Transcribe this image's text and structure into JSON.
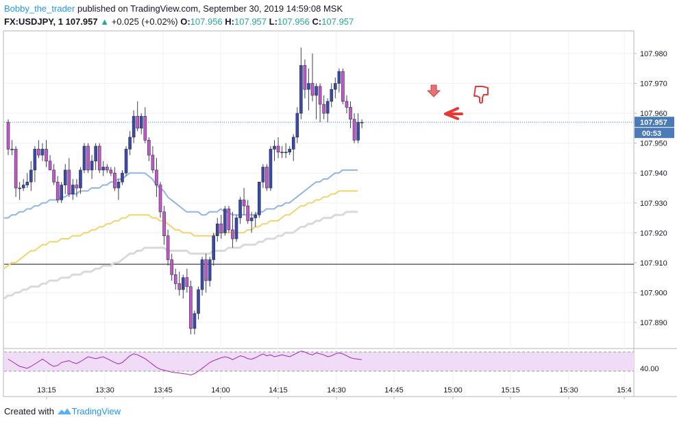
{
  "header": {
    "author": "Bobby_the_trader",
    "published_text": "published on TradingView.com, September 30, 2019 14:59:08 MSK",
    "symbol": "FX:USDJPY, 1",
    "last_price": "107.957",
    "change_arrow": "▲",
    "change": "+0.025 (+0.02%)",
    "o_label": "O:",
    "o_value": "107.956",
    "h_label": "H:",
    "h_value": "107.957",
    "l_label": "L:",
    "l_value": "107.956",
    "c_label": "C:",
    "c_value": "107.957"
  },
  "price_axis": {
    "ticks": [
      "107.980",
      "107.970",
      "107.960",
      "107.950",
      "107.940",
      "107.930",
      "107.920",
      "107.910",
      "107.900",
      "107.890"
    ],
    "current_price_tag": "107.957",
    "countdown_tag": "00:53",
    "rsi_tick": "40.00"
  },
  "time_axis": {
    "ticks": [
      "13:15",
      "13:30",
      "13:45",
      "14:00",
      "14:15",
      "14:30",
      "14:45",
      "15:00",
      "15:15",
      "15:30",
      "15:4"
    ]
  },
  "footer": {
    "created_with": "Created with",
    "brand": "TradingView"
  },
  "colors": {
    "bull_candle": "#3b4aa8",
    "bear_candle": "#c558c9",
    "ma_fast": "#8fb4e8",
    "ma_mid": "#f2d36b",
    "ma_slow": "#d9d9d9",
    "rsi_line": "#9c27b0",
    "rsi_band": "#f0dcf7",
    "annotation_red": "#e53935"
  },
  "icons": [
    "tradingview-logo-icon",
    "thumbs-down-icon",
    "arrow-left-icon",
    "arrow-down-icon"
  ],
  "chart_data": {
    "type": "candlestick",
    "symbol": "FX:USDJPY",
    "interval": "1",
    "y_range": [
      107.884,
      107.99
    ],
    "horizontal_line": 107.9095,
    "current_price": 107.957,
    "x_ticks": [
      "13:15",
      "13:30",
      "13:45",
      "14:00",
      "14:15",
      "14:30",
      "14:45",
      "15:00",
      "15:15",
      "15:30",
      "15:4"
    ],
    "candles": [
      [
        107.957,
        107.958,
        107.946,
        107.948
      ],
      [
        107.948,
        107.951,
        107.946,
        107.948
      ],
      [
        107.948,
        107.949,
        107.932,
        107.935
      ],
      [
        107.935,
        107.937,
        107.931,
        107.935
      ],
      [
        107.935,
        107.938,
        107.934,
        107.936
      ],
      [
        107.936,
        107.94,
        107.935,
        107.937
      ],
      [
        107.937,
        107.944,
        107.934,
        107.941
      ],
      [
        107.941,
        107.949,
        107.937,
        107.948
      ],
      [
        107.948,
        107.951,
        107.945,
        107.946
      ],
      [
        107.946,
        107.95,
        107.944,
        107.948
      ],
      [
        107.948,
        107.951,
        107.942,
        107.944
      ],
      [
        107.944,
        107.946,
        107.941,
        107.941
      ],
      [
        107.941,
        107.943,
        107.936,
        107.937
      ],
      [
        107.937,
        107.939,
        107.93,
        107.931
      ],
      [
        107.931,
        107.937,
        107.93,
        107.936
      ],
      [
        107.936,
        107.943,
        107.933,
        107.941
      ],
      [
        107.941,
        107.945,
        107.932,
        107.933
      ],
      [
        107.933,
        107.938,
        107.931,
        107.936
      ],
      [
        107.936,
        107.938,
        107.932,
        107.935
      ],
      [
        107.935,
        107.942,
        107.933,
        107.941
      ],
      [
        107.941,
        107.95,
        107.94,
        107.949
      ],
      [
        107.949,
        107.95,
        107.94,
        107.941
      ],
      [
        107.941,
        107.946,
        107.938,
        107.944
      ],
      [
        107.944,
        107.95,
        107.941,
        107.949
      ],
      [
        107.949,
        107.95,
        107.94,
        107.941
      ],
      [
        107.941,
        107.944,
        107.939,
        107.942
      ],
      [
        107.942,
        107.943,
        107.94,
        107.941
      ],
      [
        107.941,
        107.942,
        107.939,
        107.94
      ],
      [
        107.94,
        107.942,
        107.934,
        107.935
      ],
      [
        107.935,
        107.938,
        107.931,
        107.937
      ],
      [
        107.937,
        107.941,
        107.936,
        107.94
      ],
      [
        107.94,
        107.949,
        107.939,
        107.948
      ],
      [
        107.948,
        107.954,
        107.946,
        107.952
      ],
      [
        107.952,
        107.961,
        107.95,
        107.959
      ],
      [
        107.959,
        107.964,
        107.954,
        107.955
      ],
      [
        107.955,
        107.96,
        107.953,
        107.959
      ],
      [
        107.959,
        107.962,
        107.95,
        107.951
      ],
      [
        107.951,
        107.952,
        107.944,
        107.946
      ],
      [
        107.946,
        107.949,
        107.94,
        107.941
      ],
      [
        107.941,
        107.945,
        107.932,
        107.936
      ],
      [
        107.936,
        107.937,
        107.925,
        107.927
      ],
      [
        107.927,
        107.929,
        107.916,
        107.919
      ],
      [
        107.919,
        107.921,
        107.909,
        107.911
      ],
      [
        107.911,
        107.913,
        107.904,
        107.906
      ],
      [
        107.906,
        107.908,
        107.901,
        107.903
      ],
      [
        107.903,
        107.907,
        107.899,
        107.901
      ],
      [
        107.901,
        107.906,
        107.898,
        107.905
      ],
      [
        107.905,
        107.908,
        107.9,
        107.902
      ],
      [
        107.902,
        107.904,
        107.886,
        107.888
      ],
      [
        107.888,
        107.894,
        107.886,
        107.893
      ],
      [
        107.893,
        107.902,
        107.891,
        107.901
      ],
      [
        107.901,
        107.912,
        107.899,
        107.911
      ],
      [
        107.911,
        107.913,
        107.9,
        107.904
      ],
      [
        107.904,
        107.912,
        107.902,
        107.911
      ],
      [
        107.911,
        107.92,
        107.909,
        107.919
      ],
      [
        107.919,
        107.925,
        107.917,
        107.923
      ],
      [
        107.923,
        107.926,
        107.918,
        107.92
      ],
      [
        107.92,
        107.929,
        107.919,
        107.928
      ],
      [
        107.928,
        107.929,
        107.92,
        107.921
      ],
      [
        107.921,
        107.927,
        107.915,
        107.918
      ],
      [
        107.918,
        107.926,
        107.917,
        107.925
      ],
      [
        107.925,
        107.932,
        107.923,
        107.931
      ],
      [
        107.931,
        107.935,
        107.926,
        107.929
      ],
      [
        107.929,
        107.931,
        107.923,
        107.924
      ],
      [
        107.924,
        107.927,
        107.92,
        107.925
      ],
      [
        107.925,
        107.927,
        107.922,
        107.926
      ],
      [
        107.926,
        107.937,
        107.925,
        107.937
      ],
      [
        107.937,
        107.943,
        107.935,
        107.942
      ],
      [
        107.942,
        107.943,
        107.934,
        107.935
      ],
      [
        107.935,
        107.949,
        107.934,
        107.948
      ],
      [
        107.948,
        107.951,
        107.944,
        107.949
      ],
      [
        107.949,
        107.952,
        107.945,
        107.947
      ],
      [
        107.947,
        107.949,
        107.945,
        107.947
      ],
      [
        107.947,
        107.95,
        107.945,
        107.947
      ],
      [
        107.947,
        107.949,
        107.946,
        107.948
      ],
      [
        107.948,
        107.953,
        107.944,
        107.952
      ],
      [
        107.952,
        107.962,
        107.95,
        107.96
      ],
      [
        107.96,
        107.982,
        107.958,
        107.976
      ],
      [
        107.976,
        107.978,
        107.965,
        107.968
      ],
      [
        107.968,
        107.975,
        107.961,
        107.97
      ],
      [
        107.97,
        107.98,
        107.964,
        107.966
      ],
      [
        107.966,
        107.97,
        107.958,
        107.969
      ],
      [
        107.969,
        107.97,
        107.957,
        107.963
      ],
      [
        107.963,
        107.966,
        107.958,
        107.96
      ],
      [
        107.96,
        107.965,
        107.957,
        107.964
      ],
      [
        107.964,
        107.97,
        107.962,
        107.968
      ],
      [
        107.968,
        107.972,
        107.965,
        107.97
      ],
      [
        107.97,
        107.975,
        107.967,
        107.974
      ],
      [
        107.974,
        107.975,
        107.963,
        107.964
      ],
      [
        107.964,
        107.966,
        107.96,
        107.962
      ],
      [
        107.962,
        107.964,
        107.955,
        107.958
      ],
      [
        107.958,
        107.96,
        107.95,
        107.951
      ],
      [
        107.951,
        107.96,
        107.95,
        107.957
      ],
      [
        107.957,
        107.958,
        107.955,
        107.957
      ]
    ],
    "ma_fast": [
      107.925,
      107.925,
      107.926,
      107.926,
      107.927,
      107.927,
      107.928,
      107.928,
      107.929,
      107.929,
      107.93,
      107.93,
      107.931,
      107.931,
      107.931,
      107.932,
      107.932,
      107.933,
      107.933,
      107.933,
      107.934,
      107.934,
      107.934,
      107.935,
      107.935,
      107.935,
      107.936,
      107.936,
      107.937,
      107.937,
      107.938,
      107.938,
      107.939,
      107.94,
      107.94,
      107.94,
      107.94,
      107.94,
      107.939,
      107.938,
      107.936,
      107.935,
      107.934,
      107.932,
      107.931,
      107.93,
      107.929,
      107.928,
      107.927,
      107.927,
      107.927,
      107.927,
      107.926,
      107.926,
      107.927,
      107.927,
      107.927,
      107.928,
      107.927,
      107.927,
      107.926,
      107.926,
      107.926,
      107.926,
      107.926,
      107.926,
      107.926,
      107.927,
      107.927,
      107.928,
      107.928,
      107.928,
      107.929,
      107.929,
      107.93,
      107.93,
      107.931,
      107.932,
      107.933,
      107.934,
      107.935,
      107.936,
      107.937,
      107.937,
      107.938,
      107.938,
      107.939,
      107.94,
      107.94,
      107.941,
      107.941,
      107.941,
      107.941,
      107.941
    ],
    "ma_mid": [
      107.908,
      107.909,
      107.91,
      107.91,
      107.911,
      107.912,
      107.913,
      107.914,
      107.914,
      107.915,
      107.916,
      107.916,
      107.917,
      107.917,
      107.917,
      107.918,
      107.918,
      107.918,
      107.919,
      107.919,
      107.919,
      107.92,
      107.92,
      107.921,
      107.921,
      107.922,
      107.922,
      107.923,
      107.923,
      107.924,
      107.924,
      107.925,
      107.925,
      107.926,
      107.926,
      107.926,
      107.926,
      107.926,
      107.926,
      107.925,
      107.925,
      107.924,
      107.924,
      107.923,
      107.922,
      107.921,
      107.921,
      107.92,
      107.92,
      107.92,
      107.919,
      107.919,
      107.919,
      107.919,
      107.919,
      107.919,
      107.92,
      107.92,
      107.92,
      107.92,
      107.92,
      107.92,
      107.92,
      107.92,
      107.921,
      107.921,
      107.922,
      107.922,
      107.923,
      107.923,
      107.924,
      107.924,
      107.924,
      107.925,
      107.926,
      107.926,
      107.927,
      107.928,
      107.929,
      107.929,
      107.93,
      107.93,
      107.931,
      107.931,
      107.932,
      107.932,
      107.933,
      107.933,
      107.934,
      107.934,
      107.934,
      107.934,
      107.934,
      107.934
    ],
    "ma_slow": [
      107.898,
      107.899,
      107.899,
      107.9,
      107.9,
      107.901,
      107.901,
      107.902,
      107.902,
      107.902,
      107.903,
      107.903,
      107.904,
      107.904,
      107.904,
      107.905,
      107.905,
      107.905,
      107.906,
      107.906,
      107.906,
      107.907,
      107.907,
      107.907,
      107.908,
      107.908,
      107.909,
      107.909,
      107.909,
      107.91,
      107.91,
      107.911,
      107.912,
      107.913,
      107.913,
      107.914,
      107.914,
      107.915,
      107.915,
      107.915,
      107.915,
      107.915,
      107.915,
      107.914,
      107.914,
      107.914,
      107.914,
      107.914,
      107.914,
      107.913,
      107.913,
      107.913,
      107.913,
      107.913,
      107.913,
      107.914,
      107.914,
      107.914,
      107.914,
      107.915,
      107.915,
      107.915,
      107.915,
      107.916,
      107.916,
      107.916,
      107.916,
      107.917,
      107.917,
      107.918,
      107.918,
      107.918,
      107.919,
      107.919,
      107.92,
      107.92,
      107.92,
      107.921,
      107.922,
      107.922,
      107.923,
      107.923,
      107.924,
      107.924,
      107.925,
      107.925,
      107.925,
      107.926,
      107.926,
      107.926,
      107.927,
      107.927,
      107.927,
      107.927
    ],
    "rsi": {
      "band": [
        30,
        70
      ],
      "tick": "40.00",
      "values": [
        55,
        50,
        45,
        40,
        38,
        36,
        40,
        45,
        50,
        55,
        50,
        44,
        40,
        42,
        48,
        50,
        52,
        48,
        46,
        50,
        55,
        60,
        58,
        56,
        58,
        60,
        56,
        52,
        48,
        45,
        48,
        55,
        62,
        66,
        64,
        60,
        56,
        50,
        44,
        38,
        34,
        32,
        30,
        28,
        27,
        26,
        25,
        24,
        22,
        25,
        30,
        36,
        42,
        48,
        52,
        55,
        58,
        60,
        58,
        54,
        58,
        62,
        60,
        56,
        55,
        58,
        62,
        66,
        62,
        64,
        60,
        62,
        64,
        62,
        60,
        64,
        68,
        72,
        70,
        66,
        64,
        68,
        66,
        64,
        60,
        62,
        66,
        68,
        66,
        62,
        58,
        56,
        55,
        54
      ]
    }
  }
}
